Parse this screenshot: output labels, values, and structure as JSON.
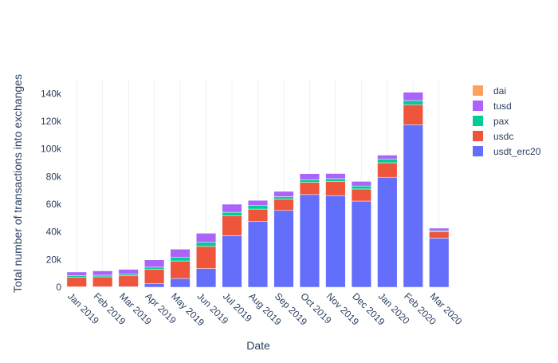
{
  "chart_data": {
    "type": "bar",
    "stacked": true,
    "title": "",
    "xlabel": "Date",
    "ylabel": "Total number of transactions into exchanges",
    "ylim": [
      0,
      150000
    ],
    "yticks": [
      0,
      20000,
      40000,
      60000,
      80000,
      100000,
      120000,
      140000
    ],
    "ytick_labels": [
      "0",
      "20k",
      "40k",
      "60k",
      "80k",
      "100k",
      "120k",
      "140k"
    ],
    "grid": "vertical",
    "legend_position": "top-right",
    "categories": [
      "Jan 2019",
      "Feb 2019",
      "Mar 2019",
      "Apr 2019",
      "May 2019",
      "Jun 2019",
      "Jul 2019",
      "Aug 2019",
      "Sep 2019",
      "Oct 2019",
      "Nov 2019",
      "Dec 2019",
      "Jan 2020",
      "Feb 2020",
      "Mar 2020"
    ],
    "series": [
      {
        "name": "usdt_erc20",
        "color": "#636efa",
        "values": [
          300,
          300,
          400,
          2500,
          6300,
          13500,
          37200,
          47500,
          55500,
          67000,
          66300,
          62300,
          79500,
          117500,
          35500
        ]
      },
      {
        "name": "usdc",
        "color": "#ef553b",
        "values": [
          7000,
          7200,
          7800,
          10500,
          12700,
          16000,
          14300,
          9000,
          8300,
          8800,
          10000,
          8700,
          10500,
          14500,
          4500
        ]
      },
      {
        "name": "pax",
        "color": "#00cc96",
        "values": [
          1000,
          1200,
          1200,
          1500,
          2800,
          3000,
          2700,
          2500,
          1700,
          2000,
          2200,
          2200,
          2800,
          3000,
          900
        ]
      },
      {
        "name": "tusd",
        "color": "#ab63fa",
        "values": [
          2700,
          3100,
          3500,
          5300,
          5700,
          6500,
          5800,
          3800,
          3800,
          4300,
          3700,
          3300,
          2700,
          6000,
          1800
        ]
      },
      {
        "name": "dai",
        "color": "#ffa15a",
        "values": [
          0,
          0,
          0,
          0,
          0,
          0,
          0,
          0,
          0,
          0,
          0,
          0,
          0,
          0,
          0
        ]
      }
    ],
    "legend_order": [
      "dai",
      "tusd",
      "pax",
      "usdc",
      "usdt_erc20"
    ]
  }
}
